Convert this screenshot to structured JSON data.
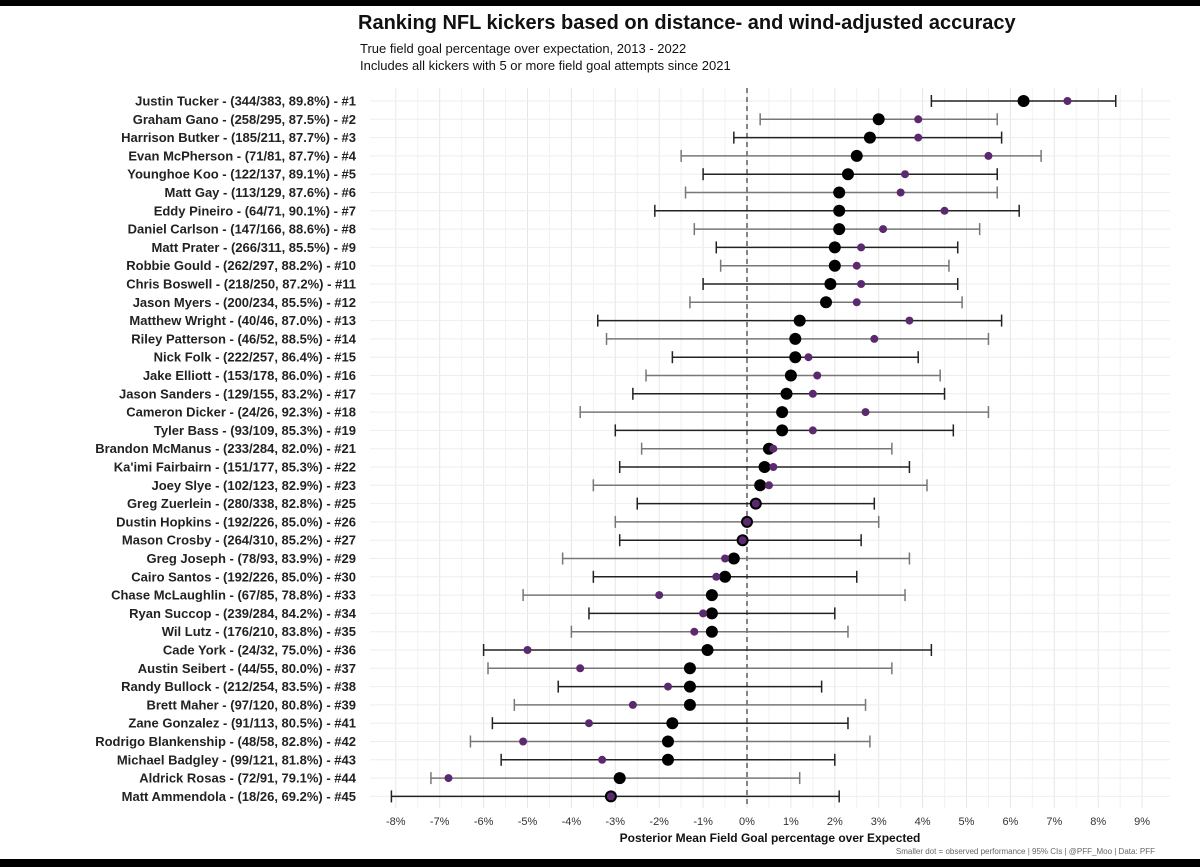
{
  "title": "Ranking NFL kickers based on distance- and wind-adjusted accuracy",
  "subtitle_line1": "True field goal percentage over expectation, 2013 - 2022",
  "subtitle_line2": "Includes all kickers with 5 or more field goal attempts since 2021",
  "xlabel": "Posterior Mean Field Goal percentage over Expected",
  "caption": "Smaller dot = observed performance | 95% CIs | @PFF_Moo | Data: PFF",
  "colors": {
    "posterior": "#000000",
    "observed": "#5b2a6e",
    "ci_dark": "#222222",
    "ci_light": "#777777",
    "grid": "#e6e6e6"
  },
  "chart_data": {
    "type": "scatter",
    "title": "Ranking NFL kickers based on distance- and wind-adjusted accuracy",
    "xlabel": "Posterior Mean Field Goal percentage over Expected",
    "ylabel": "",
    "xlim": [
      -8.3,
      9.3
    ],
    "xticks": [
      -8,
      -7,
      -6,
      -5,
      -4,
      -3,
      -2,
      -1,
      0,
      1,
      2,
      3,
      4,
      5,
      6,
      7,
      8,
      9
    ],
    "tick_suffix": "%",
    "reference_line_x": 0,
    "grid": true,
    "series": [
      {
        "name": "Posterior mean (with 95% CI)"
      },
      {
        "name": "Observed performance"
      }
    ],
    "kickers": [
      {
        "label": "Justin Tucker - (344/383, 89.8%) - #1",
        "mean": 6.3,
        "lo": 4.2,
        "hi": 8.4,
        "obs": 7.3
      },
      {
        "label": "Graham Gano - (258/295, 87.5%) - #2",
        "mean": 3.0,
        "lo": 0.3,
        "hi": 5.7,
        "obs": 3.9
      },
      {
        "label": "Harrison Butker - (185/211, 87.7%) - #3",
        "mean": 2.8,
        "lo": -0.3,
        "hi": 5.8,
        "obs": 3.9
      },
      {
        "label": "Evan McPherson - (71/81, 87.7%) - #4",
        "mean": 2.5,
        "lo": -1.5,
        "hi": 6.7,
        "obs": 5.5
      },
      {
        "label": "Younghoe Koo - (122/137, 89.1%) - #5",
        "mean": 2.3,
        "lo": -1.0,
        "hi": 5.7,
        "obs": 3.6
      },
      {
        "label": "Matt Gay - (113/129, 87.6%) - #6",
        "mean": 2.1,
        "lo": -1.4,
        "hi": 5.7,
        "obs": 3.5
      },
      {
        "label": "Eddy Pineiro - (64/71, 90.1%) - #7",
        "mean": 2.1,
        "lo": -2.1,
        "hi": 6.2,
        "obs": 4.5
      },
      {
        "label": "Daniel Carlson - (147/166, 88.6%) - #8",
        "mean": 2.1,
        "lo": -1.2,
        "hi": 5.3,
        "obs": 3.1
      },
      {
        "label": "Matt Prater - (266/311, 85.5%) - #9",
        "mean": 2.0,
        "lo": -0.7,
        "hi": 4.8,
        "obs": 2.6
      },
      {
        "label": "Robbie Gould - (262/297, 88.2%) - #10",
        "mean": 2.0,
        "lo": -0.6,
        "hi": 4.6,
        "obs": 2.5
      },
      {
        "label": "Chris Boswell - (218/250, 87.2%) - #11",
        "mean": 1.9,
        "lo": -1.0,
        "hi": 4.8,
        "obs": 2.6
      },
      {
        "label": "Jason Myers - (200/234, 85.5%) - #12",
        "mean": 1.8,
        "lo": -1.3,
        "hi": 4.9,
        "obs": 2.5
      },
      {
        "label": "Matthew Wright - (40/46, 87.0%) - #13",
        "mean": 1.2,
        "lo": -3.4,
        "hi": 5.8,
        "obs": 3.7
      },
      {
        "label": "Riley Patterson - (46/52, 88.5%) - #14",
        "mean": 1.1,
        "lo": -3.2,
        "hi": 5.5,
        "obs": 2.9
      },
      {
        "label": "Nick Folk - (222/257, 86.4%) - #15",
        "mean": 1.1,
        "lo": -1.7,
        "hi": 3.9,
        "obs": 1.4
      },
      {
        "label": "Jake Elliott - (153/178, 86.0%) - #16",
        "mean": 1.0,
        "lo": -2.3,
        "hi": 4.4,
        "obs": 1.6
      },
      {
        "label": "Jason Sanders - (129/155, 83.2%) - #17",
        "mean": 0.9,
        "lo": -2.6,
        "hi": 4.5,
        "obs": 1.5
      },
      {
        "label": "Cameron Dicker - (24/26, 92.3%) - #18",
        "mean": 0.8,
        "lo": -3.8,
        "hi": 5.5,
        "obs": 2.7
      },
      {
        "label": "Tyler Bass - (93/109, 85.3%) - #19",
        "mean": 0.8,
        "lo": -3.0,
        "hi": 4.7,
        "obs": 1.5
      },
      {
        "label": "Brandon McManus - (233/284, 82.0%) - #21",
        "mean": 0.5,
        "lo": -2.4,
        "hi": 3.3,
        "obs": 0.6
      },
      {
        "label": "Ka'imi Fairbairn - (151/177, 85.3%) - #22",
        "mean": 0.4,
        "lo": -2.9,
        "hi": 3.7,
        "obs": 0.6
      },
      {
        "label": "Joey Slye - (102/123, 82.9%) - #23",
        "mean": 0.3,
        "lo": -3.5,
        "hi": 4.1,
        "obs": 0.5
      },
      {
        "label": "Greg Zuerlein - (280/338, 82.8%) - #25",
        "mean": 0.2,
        "lo": -2.5,
        "hi": 2.9,
        "obs": 0.2
      },
      {
        "label": "Dustin Hopkins - (192/226, 85.0%) - #26",
        "mean": 0.0,
        "lo": -3.0,
        "hi": 3.0,
        "obs": 0.0
      },
      {
        "label": "Mason Crosby - (264/310, 85.2%) - #27",
        "mean": -0.1,
        "lo": -2.9,
        "hi": 2.6,
        "obs": -0.1
      },
      {
        "label": "Greg Joseph - (78/93, 83.9%) - #29",
        "mean": -0.3,
        "lo": -4.2,
        "hi": 3.7,
        "obs": -0.5
      },
      {
        "label": "Cairo Santos - (192/226, 85.0%) - #30",
        "mean": -0.5,
        "lo": -3.5,
        "hi": 2.5,
        "obs": -0.7
      },
      {
        "label": "Chase McLaughlin - (67/85, 78.8%) - #33",
        "mean": -0.8,
        "lo": -5.1,
        "hi": 3.6,
        "obs": -2.0
      },
      {
        "label": "Ryan Succop - (239/284, 84.2%) - #34",
        "mean": -0.8,
        "lo": -3.6,
        "hi": 2.0,
        "obs": -1.0
      },
      {
        "label": "Wil Lutz - (176/210, 83.8%) - #35",
        "mean": -0.8,
        "lo": -4.0,
        "hi": 2.3,
        "obs": -1.2
      },
      {
        "label": "Cade York - (24/32, 75.0%) - #36",
        "mean": -0.9,
        "lo": -6.0,
        "hi": 4.2,
        "obs": -5.0
      },
      {
        "label": "Austin Seibert - (44/55, 80.0%) - #37",
        "mean": -1.3,
        "lo": -5.9,
        "hi": 3.3,
        "obs": -3.8
      },
      {
        "label": "Randy Bullock - (212/254, 83.5%) - #38",
        "mean": -1.3,
        "lo": -4.3,
        "hi": 1.7,
        "obs": -1.8
      },
      {
        "label": "Brett Maher - (97/120, 80.8%) - #39",
        "mean": -1.3,
        "lo": -5.3,
        "hi": 2.7,
        "obs": -2.6
      },
      {
        "label": "Zane Gonzalez - (91/113, 80.5%) - #41",
        "mean": -1.7,
        "lo": -5.8,
        "hi": 2.3,
        "obs": -3.6
      },
      {
        "label": "Rodrigo Blankenship - (48/58, 82.8%) - #42",
        "mean": -1.8,
        "lo": -6.3,
        "hi": 2.8,
        "obs": -5.1
      },
      {
        "label": "Michael Badgley - (99/121, 81.8%) - #43",
        "mean": -1.8,
        "lo": -5.6,
        "hi": 2.0,
        "obs": -3.3
      },
      {
        "label": "Aldrick Rosas - (72/91, 79.1%) - #44",
        "mean": -2.9,
        "lo": -7.2,
        "hi": 1.2,
        "obs": -6.8
      },
      {
        "label": "Matt Ammendola - (18/26, 69.2%) - #45",
        "mean": -3.1,
        "lo": -8.1,
        "hi": 2.1,
        "obs": -3.1
      }
    ]
  }
}
